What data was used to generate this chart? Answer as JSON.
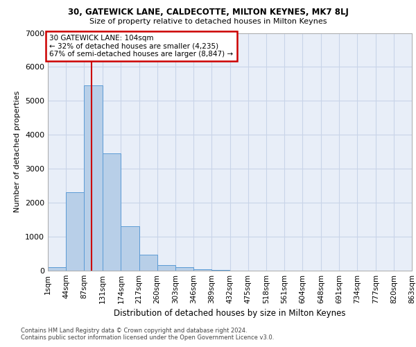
{
  "title1": "30, GATEWICK LANE, CALDECOTTE, MILTON KEYNES, MK7 8LJ",
  "title2": "Size of property relative to detached houses in Milton Keynes",
  "xlabel": "Distribution of detached houses by size in Milton Keynes",
  "ylabel": "Number of detached properties",
  "bin_edges": [
    1,
    44,
    87,
    131,
    174,
    217,
    260,
    303,
    346,
    389,
    432,
    475,
    518,
    561,
    604,
    648,
    691,
    734,
    777,
    820,
    863
  ],
  "bar_heights": [
    100,
    2300,
    5450,
    3450,
    1300,
    480,
    160,
    100,
    50,
    20,
    10,
    5,
    5,
    3,
    2,
    2,
    1,
    1,
    1,
    1
  ],
  "bar_color": "#b8cfe8",
  "bar_edge_color": "#5b9bd5",
  "property_size": 104,
  "annotation_text": "30 GATEWICK LANE: 104sqm\n← 32% of detached houses are smaller (4,235)\n67% of semi-detached houses are larger (8,847) →",
  "annotation_box_color": "#ffffff",
  "annotation_border_color": "#cc0000",
  "vline_color": "#cc0000",
  "grid_color": "#c8d4e8",
  "background_color": "#e8eef8",
  "footer_text": "Contains HM Land Registry data © Crown copyright and database right 2024.\nContains public sector information licensed under the Open Government Licence v3.0.",
  "ylim": [
    0,
    7000
  ],
  "yticks": [
    0,
    1000,
    2000,
    3000,
    4000,
    5000,
    6000,
    7000
  ]
}
